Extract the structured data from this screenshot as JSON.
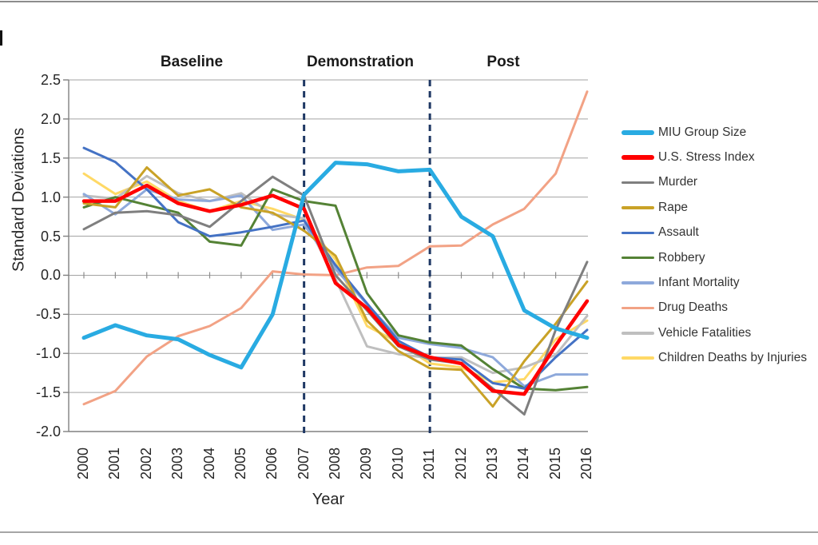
{
  "chart_data": {
    "type": "line",
    "title": "",
    "xlabel": "Year",
    "ylabel": "Standard Deviations",
    "x": [
      2000,
      2001,
      2002,
      2003,
      2004,
      2005,
      2006,
      2007,
      2008,
      2009,
      2010,
      2011,
      2012,
      2013,
      2014,
      2015,
      2016
    ],
    "ylim": [
      -2.0,
      2.5
    ],
    "ytick_step": 0.5,
    "grid": true,
    "legend_position": "right",
    "phase_annotations": [
      {
        "label": "Baseline"
      },
      {
        "label": "Demonstration"
      },
      {
        "label": "Post"
      }
    ],
    "phase_divider_years": [
      2007,
      2011
    ],
    "phase_divider_color": "#1F3864",
    "series": [
      {
        "name": "MIU Group Size",
        "color": "#29ABE2",
        "width": 5,
        "values": [
          -0.8,
          -0.64,
          -0.77,
          -0.82,
          -1.02,
          -1.18,
          -0.5,
          1.03,
          1.44,
          1.42,
          1.33,
          1.35,
          0.75,
          0.5,
          -0.45,
          -0.68,
          -0.8
        ]
      },
      {
        "name": "U.S. Stress Index",
        "color": "#FF0000",
        "width": 4.5,
        "values": [
          0.95,
          0.95,
          1.15,
          0.92,
          0.82,
          0.9,
          1.02,
          0.85,
          -0.1,
          -0.42,
          -0.89,
          -1.05,
          -1.13,
          -1.48,
          -1.52,
          -0.9,
          -0.33
        ]
      },
      {
        "name": "Murder",
        "color": "#7F7F7F",
        "width": 3,
        "values": [
          0.59,
          0.8,
          0.82,
          0.77,
          0.62,
          0.95,
          1.26,
          1.02,
          0.0,
          -0.45,
          -0.91,
          -1.08,
          -1.13,
          -1.45,
          -1.78,
          -0.7,
          0.17
        ]
      },
      {
        "name": "Rape",
        "color": "#C9A227",
        "width": 3,
        "values": [
          0.92,
          0.87,
          1.38,
          1.02,
          1.1,
          0.87,
          0.8,
          0.57,
          0.25,
          -0.58,
          -0.97,
          -1.19,
          -1.21,
          -1.68,
          -1.1,
          -0.62,
          -0.08
        ]
      },
      {
        "name": "Assault",
        "color": "#4472C4",
        "width": 3,
        "values": [
          1.63,
          1.45,
          1.1,
          0.68,
          0.5,
          0.55,
          0.62,
          0.7,
          0.13,
          -0.36,
          -0.84,
          -1.05,
          -1.08,
          -1.38,
          -1.45,
          -1.05,
          -0.7
        ]
      },
      {
        "name": "Robbery",
        "color": "#548235",
        "width": 3,
        "values": [
          0.87,
          1.0,
          0.9,
          0.8,
          0.43,
          0.38,
          1.1,
          0.95,
          0.89,
          -0.23,
          -0.77,
          -0.86,
          -0.9,
          -1.2,
          -1.45,
          -1.47,
          -1.43
        ]
      },
      {
        "name": "Infant Mortality",
        "color": "#8EA9DB",
        "width": 3,
        "values": [
          1.04,
          0.78,
          1.1,
          0.97,
          0.95,
          1.02,
          0.58,
          0.65,
          0.08,
          -0.37,
          -0.8,
          -0.88,
          -0.93,
          -1.05,
          -1.42,
          -1.27,
          -1.27
        ]
      },
      {
        "name": "Drug Deaths",
        "color": "#F2A285",
        "width": 3,
        "values": [
          -1.65,
          -1.48,
          -1.04,
          -0.78,
          -0.65,
          -0.42,
          0.05,
          0.01,
          0.0,
          0.1,
          0.12,
          0.37,
          0.38,
          0.65,
          0.85,
          1.3,
          2.35
        ]
      },
      {
        "name": "Vehicle Fatalities",
        "color": "#BFBFBF",
        "width": 3,
        "values": [
          1.02,
          0.98,
          1.27,
          1.05,
          0.95,
          1.05,
          0.78,
          0.73,
          -0.05,
          -0.91,
          -1.01,
          -1.06,
          -1.05,
          -1.25,
          -1.18,
          -1.02,
          -0.52
        ]
      },
      {
        "name": "Children Deaths by Injuries",
        "color": "#FFD966",
        "width": 3,
        "values": [
          1.3,
          1.04,
          1.2,
          0.95,
          0.82,
          0.95,
          0.85,
          0.71,
          0.2,
          -0.65,
          -0.86,
          -1.13,
          -1.18,
          -1.37,
          -1.33,
          -0.82,
          -0.58
        ]
      }
    ]
  }
}
